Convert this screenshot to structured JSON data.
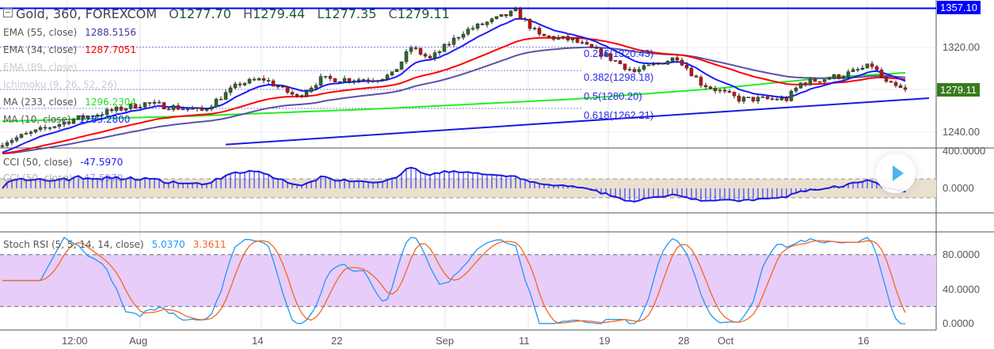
{
  "header": {
    "collapse_icon": "minus-square-icon",
    "symbol": "Gold, 360, FOREXCOM",
    "open_label": "O",
    "open": "1277.70",
    "high_label": "H",
    "high": "1279.44",
    "low_label": "L",
    "low": "1277.35",
    "close_label": "C",
    "close": "1279.11"
  },
  "indicators": [
    {
      "name": "EMA (55, close)",
      "value": "1288.5156",
      "color": "#3c3ca0"
    },
    {
      "name": "EMA (34, close)",
      "value": "1287.7051",
      "color": "#ff0000"
    },
    {
      "name": "EMA (89, close)",
      "value": "",
      "color": "#cccccc"
    },
    {
      "name": "Ichimoku (9, 26, 52, 26)",
      "value": "",
      "color": "#cccccc"
    },
    {
      "name": "MA (233, close)",
      "value": "1296.2304",
      "color": "#22dd22"
    },
    {
      "name": "MA (10, close)",
      "value": "1283.2800",
      "color": "#1a1aff"
    }
  ],
  "cci_legend": {
    "name": "CCI (50, close)",
    "value": "-47.5970"
  },
  "cci_legend_ghost": {
    "name": "CCI (50, close)",
    "value": "-47.5970"
  },
  "stoch_legend": {
    "name": "Stoch RSI (5, 5, 14, 14, close)",
    "k": "5.0370",
    "d": "3.3611"
  },
  "price_axis": {
    "ticks": [
      "1320.00",
      "1240.00"
    ],
    "hline_tag": "1357.10",
    "last_tag": "1279.11"
  },
  "cci_axis": {
    "ticks": [
      "400.0000",
      "0.0000"
    ]
  },
  "stoch_axis": {
    "ticks": [
      "80.0000",
      "40.0000",
      "0.0000"
    ]
  },
  "time_axis": [
    "12:00",
    "Aug",
    "14",
    "22",
    "Sep",
    "11",
    "19",
    "28",
    "Oct",
    "16"
  ],
  "fib": [
    "0.236(1320.43)",
    "0.382(1298.18)",
    "0.5(1280.20)",
    "0.618(1262.21)"
  ],
  "play_button": "play-icon",
  "chart_data": {
    "type": "candlestick",
    "title": "Gold, 360, FOREXCOM",
    "ylim": [
      1228,
      1362
    ],
    "horizontal_line": 1357.1,
    "fib_levels": [
      1320.43,
      1298.18,
      1280.2,
      1262.21
    ],
    "close_keypoints": [
      [
        0,
        1230
      ],
      [
        15,
        1252
      ],
      [
        30,
        1267
      ],
      [
        42,
        1260
      ],
      [
        50,
        1286
      ],
      [
        55,
        1290
      ],
      [
        62,
        1273
      ],
      [
        67,
        1290
      ],
      [
        78,
        1290
      ],
      [
        82,
        1294
      ],
      [
        86,
        1320
      ],
      [
        90,
        1309
      ],
      [
        97,
        1335
      ],
      [
        108,
        1354
      ],
      [
        113,
        1331
      ],
      [
        120,
        1327
      ],
      [
        127,
        1312
      ],
      [
        133,
        1297
      ],
      [
        142,
        1311
      ],
      [
        147,
        1286
      ],
      [
        155,
        1271
      ],
      [
        165,
        1271
      ],
      [
        168,
        1286
      ],
      [
        177,
        1294
      ],
      [
        183,
        1303
      ],
      [
        186,
        1286
      ],
      [
        190,
        1279
      ]
    ],
    "ma233_keypoints": [
      [
        0,
        1250
      ],
      [
        40,
        1255
      ],
      [
        80,
        1262
      ],
      [
        120,
        1271
      ],
      [
        150,
        1281
      ],
      [
        175,
        1292
      ],
      [
        190,
        1296
      ]
    ],
    "trendline": [
      [
        47,
        1228
      ],
      [
        195,
        1272
      ]
    ],
    "cci_ylim": [
      -200,
      420
    ],
    "cci_bands": [
      100,
      -100
    ],
    "stoch_ylim": [
      -5,
      100
    ],
    "stoch_bands": [
      80,
      20
    ]
  }
}
